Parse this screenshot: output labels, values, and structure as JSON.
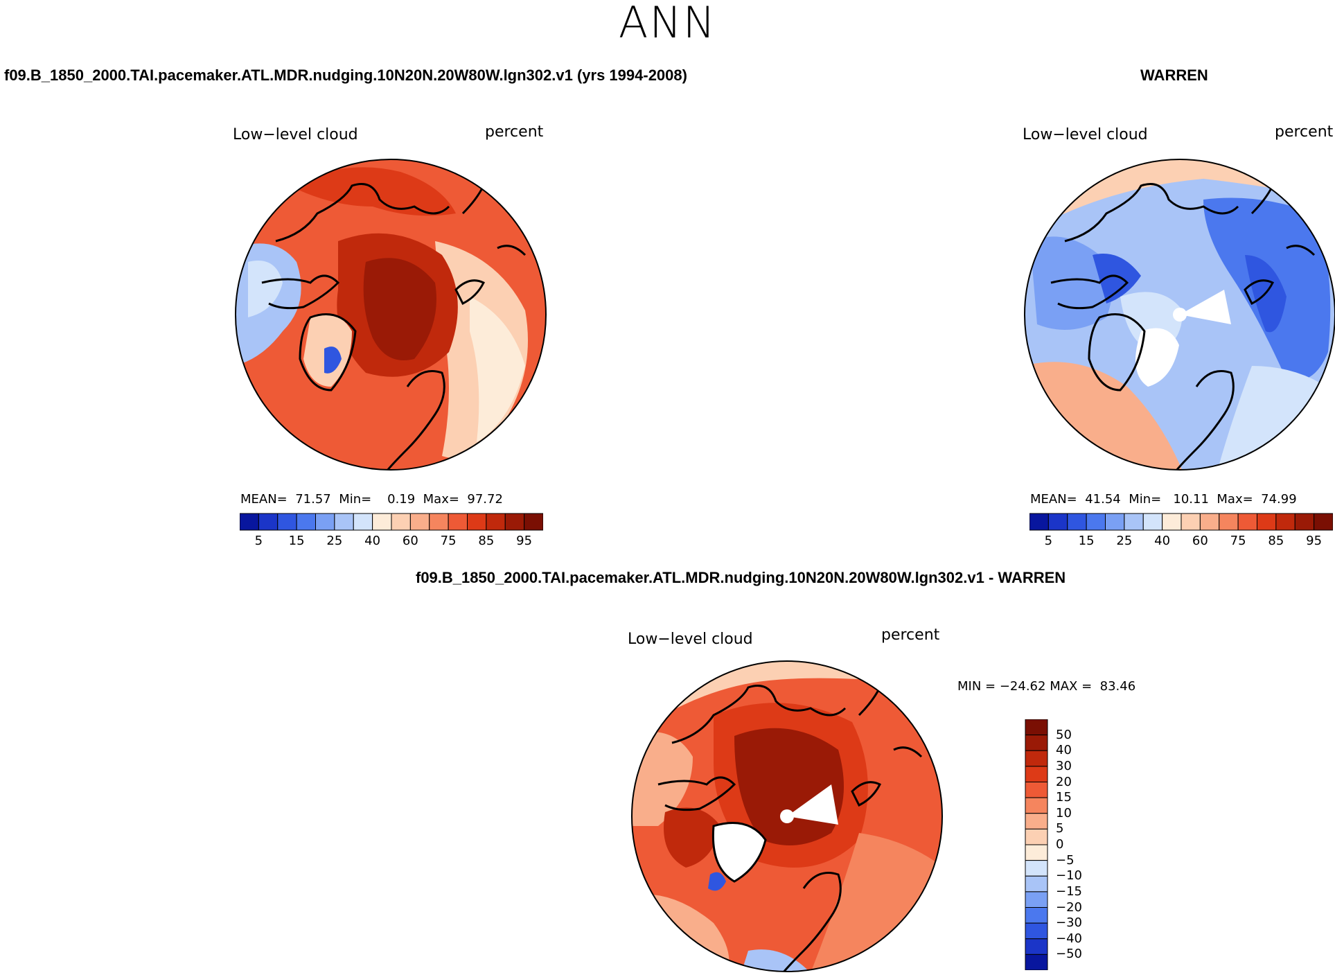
{
  "page": {
    "season": "ANN"
  },
  "chart_data": [
    {
      "type": "heatmap",
      "projection": "north-polar-stereographic",
      "case_title": "f09.B_1850_2000.TAI.pacemaker.ATL.MDR.nudging.10N20N.20W80W.lgn302.v1 (yrs 1994-2008)",
      "variable": "Low−level cloud",
      "units": "percent",
      "stats": {
        "mean_label": "MEAN=",
        "mean": "71.57",
        "min_label": "Min=",
        "min": "0.19",
        "max_label": "Max=",
        "max": "97.72"
      },
      "colorbar": {
        "levels": [
          5,
          10,
          15,
          20,
          25,
          30,
          40,
          50,
          60,
          70,
          75,
          80,
          85,
          90,
          95
        ],
        "tick_labels": [
          "5",
          "15",
          "25",
          "40",
          "60",
          "75",
          "85",
          "95"
        ],
        "colors": [
          "#08169e",
          "#1b35c8",
          "#2f56e0",
          "#4b78ee",
          "#7aa0f4",
          "#a9c4f7",
          "#d3e4fb",
          "#fdecd9",
          "#fcd0b3",
          "#f9ae8b",
          "#f5855e",
          "#ee5a36",
          "#dd3a17",
          "#c0290c",
          "#9a1a06",
          "#7a0f03"
        ]
      }
    },
    {
      "type": "heatmap",
      "projection": "north-polar-stereographic",
      "case_title": "WARREN",
      "variable": "Low−level cloud",
      "units": "percent",
      "stats": {
        "mean_label": "MEAN=",
        "mean": "41.54",
        "min_label": "Min=",
        "min": "10.11",
        "max_label": "Max=",
        "max": "74.99"
      },
      "colorbar": {
        "levels": [
          5,
          10,
          15,
          20,
          25,
          30,
          40,
          50,
          60,
          70,
          75,
          80,
          85,
          90,
          95
        ],
        "tick_labels": [
          "5",
          "15",
          "25",
          "40",
          "60",
          "75",
          "85",
          "95"
        ],
        "colors": [
          "#08169e",
          "#1b35c8",
          "#2f56e0",
          "#4b78ee",
          "#7aa0f4",
          "#a9c4f7",
          "#d3e4fb",
          "#fdecd9",
          "#fcd0b3",
          "#f9ae8b",
          "#f5855e",
          "#ee5a36",
          "#dd3a17",
          "#c0290c",
          "#9a1a06",
          "#7a0f03"
        ]
      }
    },
    {
      "type": "heatmap",
      "projection": "north-polar-stereographic",
      "case_title": "f09.B_1850_2000.TAI.pacemaker.ATL.MDR.nudging.10N20N.20W80W.lgn302.v1 - WARREN",
      "variable": "Low−level cloud",
      "units": "percent",
      "stats": {
        "min_label": "MIN =",
        "min": "−24.62",
        "max_label": "MAX =",
        "max": "83.46"
      },
      "colorbar": {
        "levels": [
          -50,
          -40,
          -30,
          -20,
          -15,
          -10,
          -5,
          0,
          5,
          10,
          15,
          20,
          30,
          40,
          50
        ],
        "tick_labels": [
          "50",
          "40",
          "30",
          "20",
          "15",
          "10",
          "5",
          "0",
          "−5",
          "−10",
          "−15",
          "−20",
          "−30",
          "−40",
          "−50"
        ],
        "colors": [
          "#7a0f03",
          "#9a1a06",
          "#c0290c",
          "#dd3a17",
          "#ee5a36",
          "#f5855e",
          "#f9ae8b",
          "#fcd0b3",
          "#fdecd9",
          "#d3e4fb",
          "#a9c4f7",
          "#7aa0f4",
          "#4b78ee",
          "#2f56e0",
          "#1b35c8",
          "#08169e"
        ]
      }
    }
  ]
}
